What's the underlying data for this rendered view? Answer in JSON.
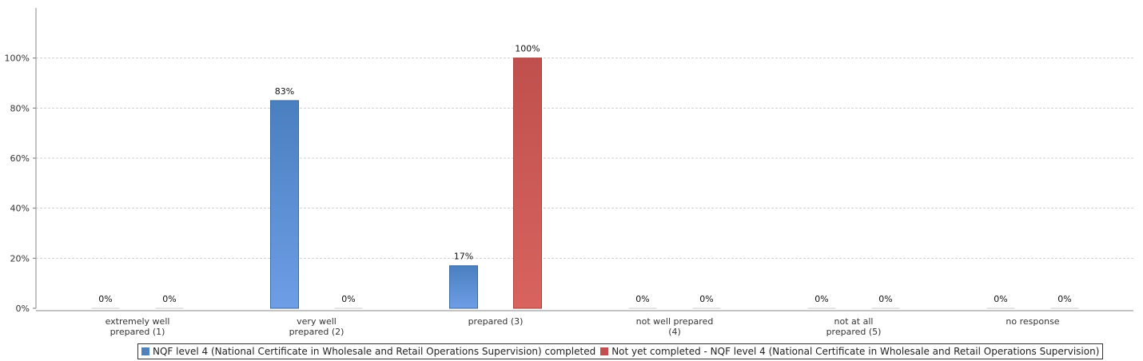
{
  "chart_data": {
    "type": "bar",
    "categories": [
      [
        "extremely well",
        "prepared (1)"
      ],
      [
        "very well",
        "prepared (2)"
      ],
      [
        "prepared (3)"
      ],
      [
        "not well prepared",
        "(4)"
      ],
      [
        "not at all",
        "prepared (5)"
      ],
      [
        "no response"
      ]
    ],
    "series": [
      {
        "name": "NQF level 4 (National Certificate in Wholesale and Retail Operations Supervision) completed",
        "values": [
          0,
          83,
          17,
          0,
          0,
          0
        ],
        "labels": [
          "0%",
          "83%",
          "17%",
          "0%",
          "0%",
          "0%"
        ],
        "color_top": "#4a7fc0",
        "color_bottom": "#6e9ee6"
      },
      {
        "name": "Not yet completed - NQF level 4 (National Certificate in Wholesale and Retail Operations Supervision)",
        "values": [
          0,
          0,
          100,
          0,
          0,
          0
        ],
        "labels": [
          "0%",
          "0%",
          "100%",
          "0%",
          "0%",
          "0%"
        ],
        "color_top": "#c0504d",
        "color_bottom": "#d8635f"
      }
    ],
    "yticks": [
      "0%",
      "20%",
      "40%",
      "60%",
      "80%",
      "100%"
    ],
    "ylim": [
      0,
      120
    ],
    "grid": true,
    "legend_position": "bottom"
  }
}
